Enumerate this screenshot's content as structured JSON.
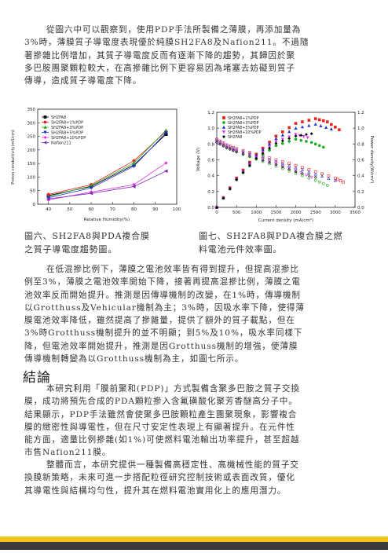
{
  "paragraphs": {
    "p1": [
      "從圖六中可以觀察到，使用PDP手法所製備之薄膜，再添加量為",
      "3%時，薄膜質子導電度表現優於純膜SH2FA8及Nafion211。不過隨",
      "著摻雜比例增加，其質子導電度反而有逐漸下降的趨勢，其歸因於聚",
      "多巴胺團聚顆粒較大，在高摻雜比例下更容易因為堵塞去妨礙到質子",
      "傳導，造成質子導電度下降。"
    ],
    "p2": [
      "在低混摻比例下，薄膜之電池效率皆有得到提升，但提高混摻比",
      "例至3%，薄膜之電池效率開始下降，接著再提高混摻比例，薄膜之電",
      "池效率反而開始提升。推測是因傳導機制的改變，在1%時，傳導機制",
      "以Grotthuss及Vehicular機制為主；3%時，因吸水率下降，使得薄",
      "膜電池效率降低，雖然提高了摻雜量，提供了額外的質子載點，但在",
      "3%時Grotthuss機制提升的並不明顯；到5%及10%，吸水率同樣下",
      "降，但電池效率開始提升，推測是因Grotthuss機制的增強，使薄膜",
      "傳導機制轉變為以Grotthuss機制為主，如圖七所示。"
    ],
    "conclusion_heading": "結論",
    "c1": [
      "本研究利用「膜前聚和(PDP)」方式製備含聚多巴胺之質子交換",
      "膜，成功將預先合成的PDA顆粒摻入含氟磺酸化聚芳香醚高分子中。",
      "結果顯示，PDP手法雖然會使聚多巴胺顆粒產生團聚現象，影響複合",
      "膜的緻密性與導電性，但在尺寸安定性表現上有顯著提升。在元件性",
      "能方面，適量比例摻雜(如1%)可使燃料電池輸出功率提升，甚至超越",
      "市售Nafion211膜。"
    ],
    "c2": [
      "整體而言，本研究提供一種製備高穩定性、高機械性能的質子交",
      "換膜新策略，未來可進一步搭配粒徑研究控制技術或表面改質，優化",
      "其導電性與結構均勻性，提升其在燃料電池實用化上的應用潛力。"
    ]
  },
  "captions": {
    "fig6": [
      "圖六、SH2FA8與PDA複合膜",
      "之質子導電度趨勢圖。"
    ],
    "fig7": [
      "圖七、SH2FA8與PDA複合膜之燃",
      "料電池元件效率圖。"
    ]
  },
  "colors": {
    "SH2FA8": "#000000",
    "1%": "#e8221c",
    "3%": "#22aa22",
    "5%": "#1f2fd0",
    "10%": "#e233e2",
    "Nafion211": "#7a26b8",
    "footer_yellow": "#f2c318",
    "footer_dark": "#3a3a3a"
  },
  "chart_data": [
    {
      "type": "line",
      "xlabel": "Relative Humidity(%)",
      "ylabel": "Proton conductivity(mS/cm)",
      "xlim": [
        35,
        100
      ],
      "ylim": [
        0,
        350
      ],
      "x_ticks": [
        40,
        50,
        60,
        70,
        80,
        90,
        100
      ],
      "y_ticks": [
        0,
        50,
        100,
        150,
        200,
        250,
        300,
        350
      ],
      "legend": "top-left",
      "x": [
        40,
        60,
        80,
        95
      ],
      "series": [
        {
          "name": "SH2FA8",
          "marker": "square",
          "values": [
            32,
            65,
            145,
            258
          ]
        },
        {
          "name": "SH2FA8+1%PDP",
          "marker": "circle",
          "values": [
            36,
            72,
            160,
            268
          ]
        },
        {
          "name": "SH2FA8+3%PDP",
          "marker": "triangle-up",
          "values": [
            28,
            68,
            152,
            272
          ]
        },
        {
          "name": "SH2FA8+5%PDP",
          "marker": "triangle-down",
          "values": [
            24,
            60,
            140,
            263
          ]
        },
        {
          "name": "SH2FA8+10%PDP",
          "marker": "diamond",
          "values": [
            16,
            45,
            72,
            152
          ]
        },
        {
          "name": "Nafion211",
          "marker": "triangle-left",
          "values": [
            20,
            40,
            65,
            122
          ]
        }
      ]
    },
    {
      "type": "line",
      "xlabel": "Current density (mA/cm²)",
      "ylabel": "Voltage (V)",
      "y2label": "Power density(W/cm²)",
      "xlim": [
        0,
        3500
      ],
      "ylim": [
        0,
        1.2
      ],
      "y2lim": [
        0,
        1.2
      ],
      "x_ticks": [
        0,
        500,
        1000,
        1500,
        2000,
        2500,
        3000,
        3500
      ],
      "y_ticks": [
        0.0,
        0.2,
        0.4,
        0.6,
        0.8,
        1.0,
        1.2
      ],
      "legend": "top-left",
      "series": [
        {
          "name": "SH2FA8+1%PDP",
          "voltage_x": [
            0,
            250,
            500,
            1000,
            1500,
            2000,
            2500,
            3000,
            3200
          ],
          "voltage": [
            0.86,
            0.79,
            0.74,
            0.67,
            0.6,
            0.53,
            0.45,
            0.37,
            0.32
          ],
          "power_x": [
            0,
            500,
            1000,
            1500,
            2000,
            2500,
            2800,
            3100
          ],
          "power": [
            0.0,
            0.37,
            0.67,
            0.9,
            1.06,
            1.12,
            1.08,
            0.98
          ]
        },
        {
          "name": "SH2FA8+3%PDP",
          "voltage_x": [
            0,
            250,
            500,
            1000,
            1500,
            2000,
            2500,
            2800
          ],
          "voltage": [
            0.84,
            0.76,
            0.7,
            0.61,
            0.52,
            0.43,
            0.34,
            0.28
          ],
          "power_x": [
            0,
            500,
            1000,
            1500,
            2000,
            2400,
            2700
          ],
          "power": [
            0.0,
            0.35,
            0.61,
            0.78,
            0.86,
            0.82,
            0.76
          ]
        },
        {
          "name": "SH2FA8+5%PDP",
          "voltage_x": [
            0,
            250,
            500,
            1000,
            1500,
            2000,
            2500,
            3000
          ],
          "voltage": [
            0.85,
            0.78,
            0.73,
            0.66,
            0.58,
            0.5,
            0.42,
            0.34
          ],
          "power_x": [
            0,
            500,
            1000,
            1500,
            2000,
            2500,
            2900
          ],
          "power": [
            0.0,
            0.36,
            0.66,
            0.87,
            1.0,
            1.05,
            0.99
          ]
        },
        {
          "name": "SH2FA8+10%PDP",
          "voltage_x": [
            0,
            250,
            500,
            1000,
            1500,
            2000,
            2400
          ],
          "voltage": [
            0.83,
            0.76,
            0.71,
            0.63,
            0.55,
            0.46,
            0.38
          ],
          "power_x": [
            0,
            500,
            1000,
            1500,
            2000,
            2300
          ],
          "power": [
            0.0,
            0.35,
            0.63,
            0.83,
            0.92,
            0.88
          ]
        },
        {
          "name": "SH2FA8",
          "voltage_x": [
            0,
            250,
            500,
            1000,
            1500,
            2000,
            2500
          ],
          "voltage": [
            0.82,
            0.75,
            0.7,
            0.62,
            0.54,
            0.45,
            0.38
          ],
          "power_x": [
            0,
            500,
            1000,
            1500,
            2000,
            2400
          ],
          "power": [
            0.0,
            0.35,
            0.62,
            0.81,
            0.9,
            0.93
          ]
        }
      ]
    }
  ]
}
